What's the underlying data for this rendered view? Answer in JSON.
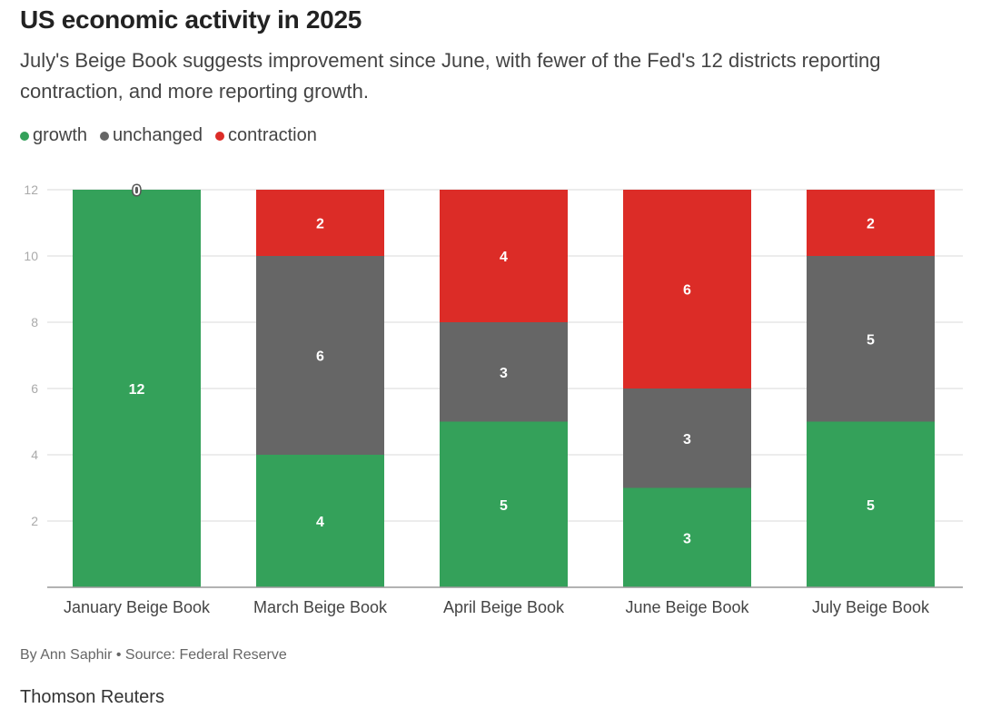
{
  "header": {
    "title": "US economic activity in 2025",
    "subtitle": "July's Beige Book suggests improvement since June, with fewer of the Fed's 12 districts reporting contraction, and more reporting growth."
  },
  "legend": [
    {
      "label": "growth",
      "color": "#34a15a"
    },
    {
      "label": "unchanged",
      "color": "#666666"
    },
    {
      "label": "contraction",
      "color": "#dc2c27"
    }
  ],
  "chart_data": {
    "type": "bar",
    "stacked": true,
    "categories": [
      "January Beige Book",
      "March Beige Book",
      "April Beige Book",
      "June Beige Book",
      "July Beige Book"
    ],
    "series": [
      {
        "name": "growth",
        "color": "#34a15a",
        "values": [
          12,
          4,
          5,
          3,
          5
        ]
      },
      {
        "name": "unchanged",
        "color": "#666666",
        "values": [
          0,
          6,
          3,
          3,
          5
        ]
      },
      {
        "name": "contraction",
        "color": "#dc2c27",
        "values": [
          0,
          2,
          4,
          6,
          2
        ]
      }
    ],
    "ylim": [
      0,
      12
    ],
    "yticks": [
      2,
      4,
      6,
      8,
      10,
      12
    ],
    "grid": true,
    "legend_position": "top-left"
  },
  "footer": {
    "byline": "By Ann Saphir • Source: Federal Reserve",
    "brand": "Thomson Reuters"
  }
}
